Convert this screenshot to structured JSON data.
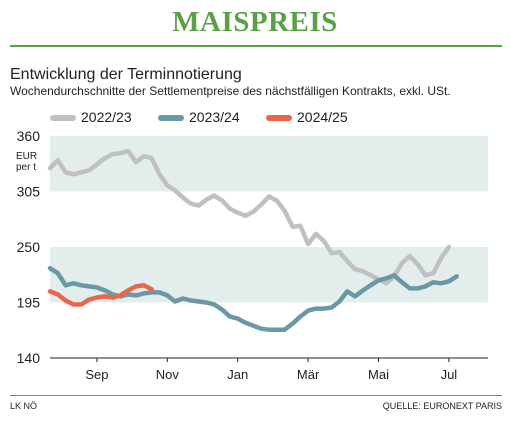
{
  "header": {
    "title": "MAISPREIS",
    "subtitle": "Entwicklung der Terminnotierung",
    "note": "Wochendurchschnitte der Settlementpreise des nächstfälligen Kontrakts, exkl. USt."
  },
  "footer": {
    "left": "LK NÖ",
    "right": "QUELLE: EURONEXT PARIS"
  },
  "colors": {
    "accent": "#5aa046",
    "band": "#e3eeec",
    "series": [
      "#c0c0c0",
      "#6a98a6",
      "#e7674a"
    ]
  },
  "chart_data": {
    "type": "line",
    "title": "Entwicklung der Terminnotierung",
    "subtitle": "Wochendurchschnitte der Settlementpreise des nächstfälligen Kontrakts, exkl. USt.",
    "yunit": "EUR per t",
    "ylim": [
      140,
      360
    ],
    "yticks": [
      140,
      195,
      250,
      305,
      360
    ],
    "month_ticks": [
      "Sep",
      "Nov",
      "Jan",
      "Mär",
      "Mai",
      "Jul"
    ],
    "month_tick_index": [
      6,
      15,
      24,
      33,
      42,
      51
    ],
    "week_count": 56,
    "legend_position": "top",
    "series": [
      {
        "name": "2022/23",
        "color": "#c0c0c0",
        "values": [
          328,
          336,
          324,
          322,
          324,
          326,
          332,
          338,
          342,
          343,
          345,
          334,
          340,
          338,
          322,
          311,
          306,
          299,
          293,
          291,
          297,
          301,
          296,
          288,
          284,
          281,
          285,
          292,
          300,
          296,
          286,
          270,
          271,
          253,
          263,
          256,
          244,
          245,
          236,
          228,
          226,
          222,
          218,
          214,
          221,
          234,
          241,
          233,
          222,
          224,
          239,
          250
        ]
      },
      {
        "name": "2023/24",
        "color": "#6a98a6",
        "values": [
          229,
          224,
          212,
          214,
          212,
          211,
          210,
          207,
          203,
          201,
          203,
          202,
          204,
          205,
          205,
          202,
          196,
          199,
          197,
          196,
          195,
          193,
          188,
          181,
          179,
          175,
          172,
          169,
          168,
          168,
          168,
          174,
          181,
          187,
          189,
          189,
          190,
          196,
          206,
          201,
          207,
          212,
          217,
          219,
          222,
          215,
          209,
          209,
          211,
          215,
          214,
          216,
          221
        ]
      },
      {
        "name": "2024/25",
        "color": "#e7674a",
        "values": [
          206,
          203,
          197,
          193,
          193,
          198,
          200,
          201,
          200,
          202,
          207,
          211,
          212,
          208
        ]
      }
    ]
  }
}
